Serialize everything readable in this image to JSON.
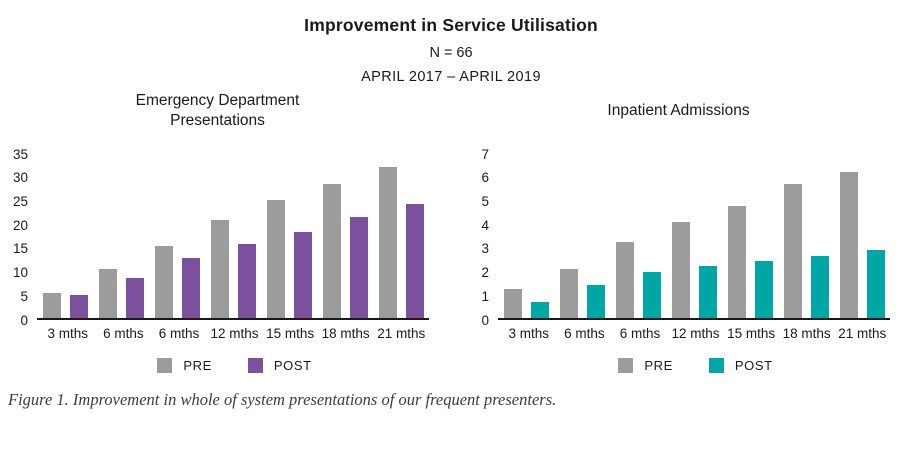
{
  "header": {
    "title": "Improvement in Service Utilisation",
    "subtitle_n": "N = 66",
    "subtitle_period": "APRIL 2017 – APRIL 2019"
  },
  "caption": "Figure 1. Improvement in whole of system presentations of our frequent presenters.",
  "colors": {
    "pre_gray": "#9C9C9C",
    "post_purple": "#7B519E",
    "post_teal": "#00A5A6",
    "axis": "#1A1A1A",
    "caption_text": "#3C3C3C"
  },
  "chart_data": [
    {
      "type": "bar",
      "title_lines": [
        "Emergency Department",
        "Presentations"
      ],
      "categories": [
        "3 mths",
        "6 mths",
        "6 mths",
        "12 mths",
        "15 mths",
        "18 mths",
        "21 mths"
      ],
      "series": [
        {
          "name": "PRE",
          "color": "#9C9C9C",
          "values": [
            5.4,
            10.4,
            15.3,
            21.0,
            25.2,
            28.7,
            32.3
          ]
        },
        {
          "name": "POST",
          "color": "#7B519E",
          "values": [
            5.0,
            8.5,
            12.8,
            15.8,
            18.4,
            21.6,
            24.3
          ]
        }
      ],
      "ylim": [
        0,
        35
      ],
      "ytick_step": 5,
      "grid": false,
      "legend_position": "bottom"
    },
    {
      "type": "bar",
      "title_lines": [
        "Inpatient Admissions"
      ],
      "categories": [
        "3 mths",
        "6 mths",
        "6 mths",
        "12 mths",
        "15 mths",
        "18 mths",
        "21 mths"
      ],
      "series": [
        {
          "name": "PRE",
          "color": "#9C9C9C",
          "values": [
            1.25,
            2.1,
            3.25,
            4.1,
            4.8,
            5.7,
            6.25
          ]
        },
        {
          "name": "POST",
          "color": "#00A5A6",
          "values": [
            0.7,
            1.4,
            1.95,
            2.2,
            2.45,
            2.65,
            2.9
          ]
        }
      ],
      "ylim": [
        0,
        7
      ],
      "ytick_step": 1,
      "grid": false,
      "legend_position": "bottom"
    }
  ]
}
